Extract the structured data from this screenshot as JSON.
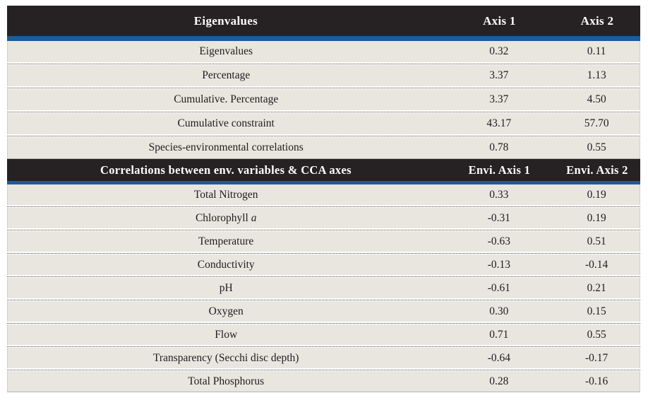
{
  "theme": {
    "header_bg": "#262123",
    "header_text": "#ffffff",
    "accent_blue": "#1a5c9c",
    "row_bg": "#e9e6e0",
    "row_text": "#1d1d1d",
    "page_bg": "#ffffff"
  },
  "sections": [
    {
      "header": {
        "title": "Eigenvalues",
        "col1": "Axis 1",
        "col2": "Axis 2"
      },
      "rows": [
        {
          "label": "Eigenvalues",
          "axis1": "0.32",
          "axis2": "0.11"
        },
        {
          "label": "Percentage",
          "axis1": "3.37",
          "axis2": "1.13"
        },
        {
          "label": "Cumulative. Percentage",
          "axis1": "3.37",
          "axis2": "4.50"
        },
        {
          "label": "Cumulative constraint",
          "axis1": "43.17",
          "axis2": "57.70"
        },
        {
          "label": "Species-environmental correlations",
          "axis1": "0.78",
          "axis2": "0.55"
        }
      ]
    },
    {
      "header": {
        "title": "Correlations between env. variables & CCA axes",
        "col1": "Envi. Axis 1",
        "col2": "Envi. Axis 2"
      },
      "rows": [
        {
          "label": "Total Nitrogen",
          "axis1": "0.33",
          "axis2": "0.19"
        },
        {
          "label": "Chlorophyll",
          "label_italic_suffix": "a",
          "axis1": "-0.31",
          "axis2": "0.19"
        },
        {
          "label": "Temperature",
          "axis1": "-0.63",
          "axis2": "0.51"
        },
        {
          "label": "Conductivity",
          "axis1": "-0.13",
          "axis2": "-0.14"
        },
        {
          "label": "pH",
          "axis1": "-0.61",
          "axis2": "0.21"
        },
        {
          "label": "Oxygen",
          "axis1": "0.30",
          "axis2": "0.15"
        },
        {
          "label": "Flow",
          "axis1": "0.71",
          "axis2": "0.55"
        },
        {
          "label": "Transparency (Secchi disc depth)",
          "axis1": "-0.64",
          "axis2": "-0.17"
        },
        {
          "label": "Total Phosphorus",
          "axis1": "0.28",
          "axis2": "-0.16"
        }
      ]
    }
  ]
}
